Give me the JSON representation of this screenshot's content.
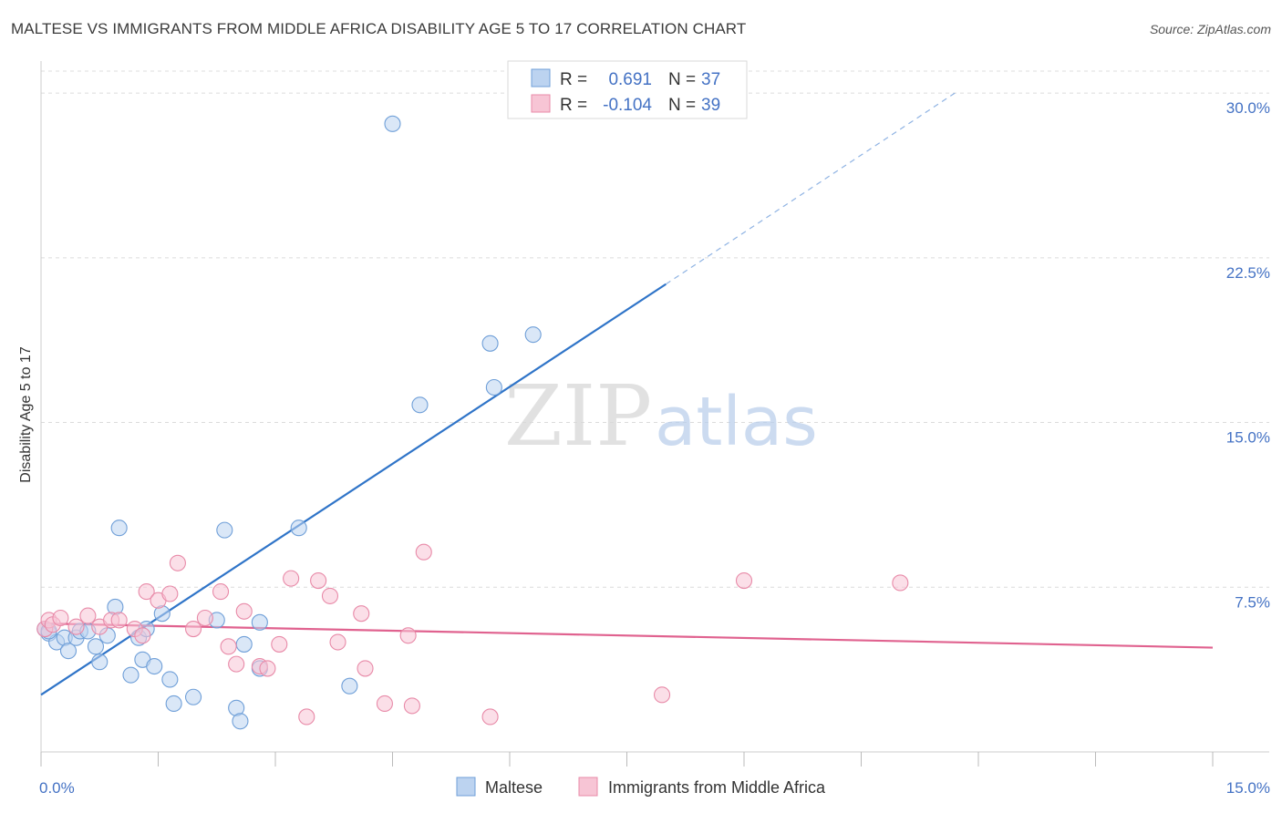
{
  "header": {
    "title": "MALTESE VS IMMIGRANTS FROM MIDDLE AFRICA DISABILITY AGE 5 TO 17 CORRELATION CHART",
    "source": "Source: ZipAtlas.com"
  },
  "watermark": {
    "zip": "ZIP",
    "atlas": "atlas"
  },
  "legend": {
    "r_label": "R =",
    "n_label": "N =",
    "rows": [
      {
        "r": "0.691",
        "n": "37",
        "color": "#6f9fd8"
      },
      {
        "r": "-0.104",
        "n": "39",
        "color": "#e88aa8"
      }
    ]
  },
  "chart_data": {
    "type": "scatter",
    "title": "MALTESE VS IMMIGRANTS FROM MIDDLE AFRICA DISABILITY AGE 5 TO 17 CORRELATION CHART",
    "xlabel": "",
    "ylabel": "Disability Age 5 to 17",
    "xlim": [
      0,
      15
    ],
    "ylim": [
      0,
      31
    ],
    "x_tick_labels": [
      {
        "value": 0,
        "label": "0.0%"
      },
      {
        "value": 15,
        "label": "15.0%"
      }
    ],
    "y_tick_labels": [
      {
        "value": 7.5,
        "label": "7.5%"
      },
      {
        "value": 15,
        "label": "15.0%"
      },
      {
        "value": 22.5,
        "label": "22.5%"
      },
      {
        "value": 30,
        "label": "30.0%"
      }
    ],
    "grid": true,
    "legend_position": "top-center",
    "series": [
      {
        "name": "Maltese",
        "color": "#6f9fd8",
        "fill": "#bcd3f0",
        "trend": {
          "x0": 0,
          "y0": 2.6,
          "x1": 8.0,
          "y1": 21.3,
          "dash_to_x": 11.7,
          "dash_to_y": 30.0
        },
        "points": [
          [
            0.05,
            5.6
          ],
          [
            0.1,
            5.4
          ],
          [
            0.2,
            5.0
          ],
          [
            0.3,
            5.2
          ],
          [
            0.35,
            4.6
          ],
          [
            0.45,
            5.2
          ],
          [
            0.5,
            5.5
          ],
          [
            0.6,
            5.5
          ],
          [
            0.7,
            4.8
          ],
          [
            0.75,
            4.1
          ],
          [
            0.85,
            5.3
          ],
          [
            0.95,
            6.6
          ],
          [
            1.0,
            10.2
          ],
          [
            1.15,
            3.5
          ],
          [
            1.25,
            5.2
          ],
          [
            1.3,
            4.2
          ],
          [
            1.35,
            5.6
          ],
          [
            1.45,
            3.9
          ],
          [
            1.55,
            6.3
          ],
          [
            1.65,
            3.3
          ],
          [
            1.7,
            2.2
          ],
          [
            1.95,
            2.5
          ],
          [
            2.25,
            6.0
          ],
          [
            2.35,
            10.1
          ],
          [
            2.5,
            2.0
          ],
          [
            2.55,
            1.4
          ],
          [
            2.6,
            4.9
          ],
          [
            2.8,
            3.8
          ],
          [
            2.8,
            5.9
          ],
          [
            3.3,
            10.2
          ],
          [
            3.95,
            3.0
          ],
          [
            4.5,
            28.6
          ],
          [
            4.85,
            15.8
          ],
          [
            5.75,
            18.6
          ],
          [
            5.8,
            16.6
          ],
          [
            6.3,
            19.0
          ],
          [
            0.1,
            5.5
          ]
        ]
      },
      {
        "name": "Immigrants from Middle Africa",
        "color": "#e88aa8",
        "fill": "#f7c5d5",
        "trend": {
          "x0": 0,
          "y0": 5.85,
          "x1": 15,
          "y1": 4.75
        },
        "points": [
          [
            0.05,
            5.6
          ],
          [
            0.1,
            6.0
          ],
          [
            0.15,
            5.8
          ],
          [
            0.25,
            6.1
          ],
          [
            0.45,
            5.7
          ],
          [
            0.6,
            6.2
          ],
          [
            0.75,
            5.7
          ],
          [
            0.9,
            6.0
          ],
          [
            1.0,
            6.0
          ],
          [
            1.2,
            5.6
          ],
          [
            1.3,
            5.3
          ],
          [
            1.35,
            7.3
          ],
          [
            1.5,
            6.9
          ],
          [
            1.65,
            7.2
          ],
          [
            1.75,
            8.6
          ],
          [
            1.95,
            5.6
          ],
          [
            2.1,
            6.1
          ],
          [
            2.3,
            7.3
          ],
          [
            2.4,
            4.8
          ],
          [
            2.5,
            4.0
          ],
          [
            2.6,
            6.4
          ],
          [
            2.8,
            3.9
          ],
          [
            2.9,
            3.8
          ],
          [
            3.05,
            4.9
          ],
          [
            3.2,
            7.9
          ],
          [
            3.4,
            1.6
          ],
          [
            3.55,
            7.8
          ],
          [
            3.7,
            7.1
          ],
          [
            3.8,
            5.0
          ],
          [
            4.1,
            6.3
          ],
          [
            4.15,
            3.8
          ],
          [
            4.4,
            2.2
          ],
          [
            4.7,
            5.3
          ],
          [
            4.75,
            2.1
          ],
          [
            4.9,
            9.1
          ],
          [
            5.75,
            1.6
          ],
          [
            7.95,
            2.6
          ],
          [
            9.0,
            7.8
          ],
          [
            11.0,
            7.7
          ]
        ]
      }
    ]
  },
  "bottom_legend": {
    "items": [
      {
        "label": "Maltese"
      },
      {
        "label": "Immigrants from Middle Africa"
      }
    ]
  }
}
